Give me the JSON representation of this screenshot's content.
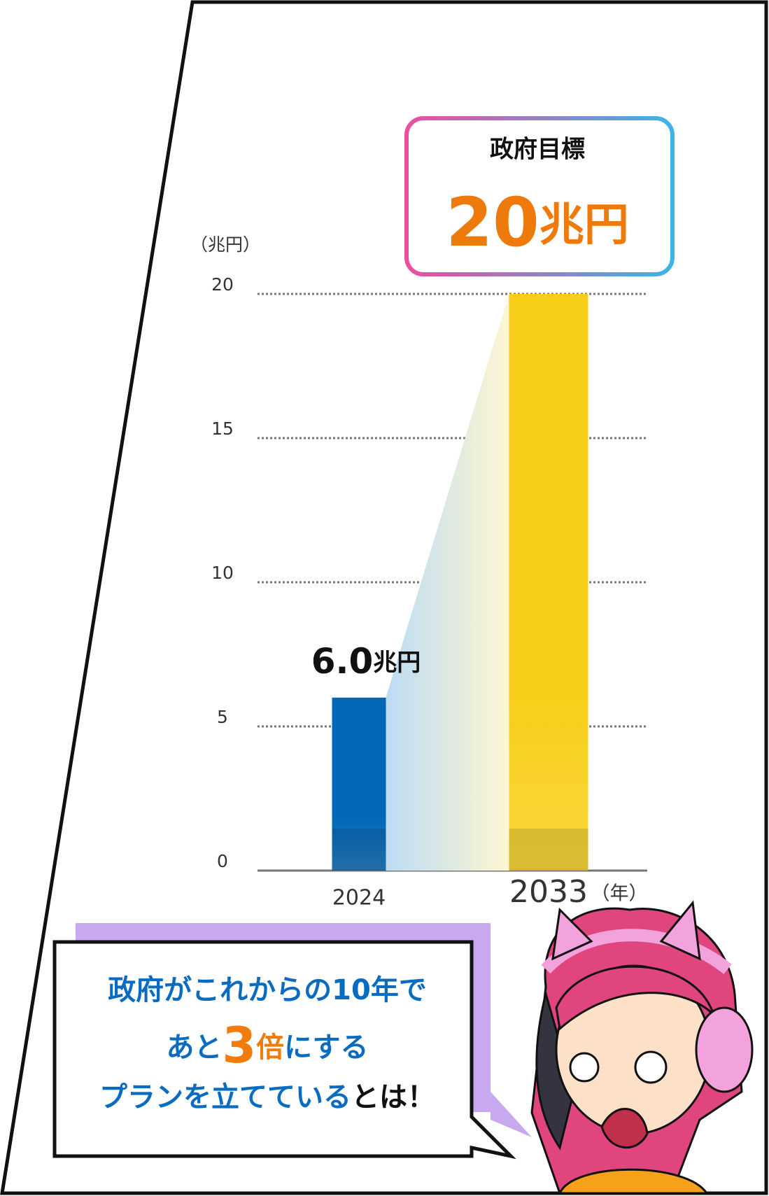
{
  "chart_data": {
    "type": "bar",
    "y_unit": "（兆円）",
    "x_unit": "（年）",
    "categories": [
      "2024",
      "2033"
    ],
    "values": [
      6.0,
      20
    ],
    "value_labels": [
      "6.0",
      "20"
    ],
    "value_unit": "兆円",
    "colors": [
      "#0068b7",
      "#f7cf1a"
    ],
    "ylim": [
      0,
      20
    ],
    "yticks": [
      0,
      5,
      10,
      15,
      20
    ],
    "grid": true,
    "target_title": "政府目標"
  },
  "speech": {
    "lines": [
      [
        {
          "text": "政府がこれからの10年で",
          "color": "#0a6cc0"
        }
      ],
      [
        {
          "text": "あと",
          "color": "#0a6cc0"
        },
        {
          "text": "3",
          "color": "#f07c0c"
        },
        {
          "text": "倍",
          "color": "#f07c0c"
        },
        {
          "text": "にする",
          "color": "#0a6cc0"
        }
      ],
      [
        {
          "text": "プランを立てている",
          "color": "#0a6cc0"
        },
        {
          "text": "とは！",
          "color": "#111111"
        }
      ]
    ]
  }
}
